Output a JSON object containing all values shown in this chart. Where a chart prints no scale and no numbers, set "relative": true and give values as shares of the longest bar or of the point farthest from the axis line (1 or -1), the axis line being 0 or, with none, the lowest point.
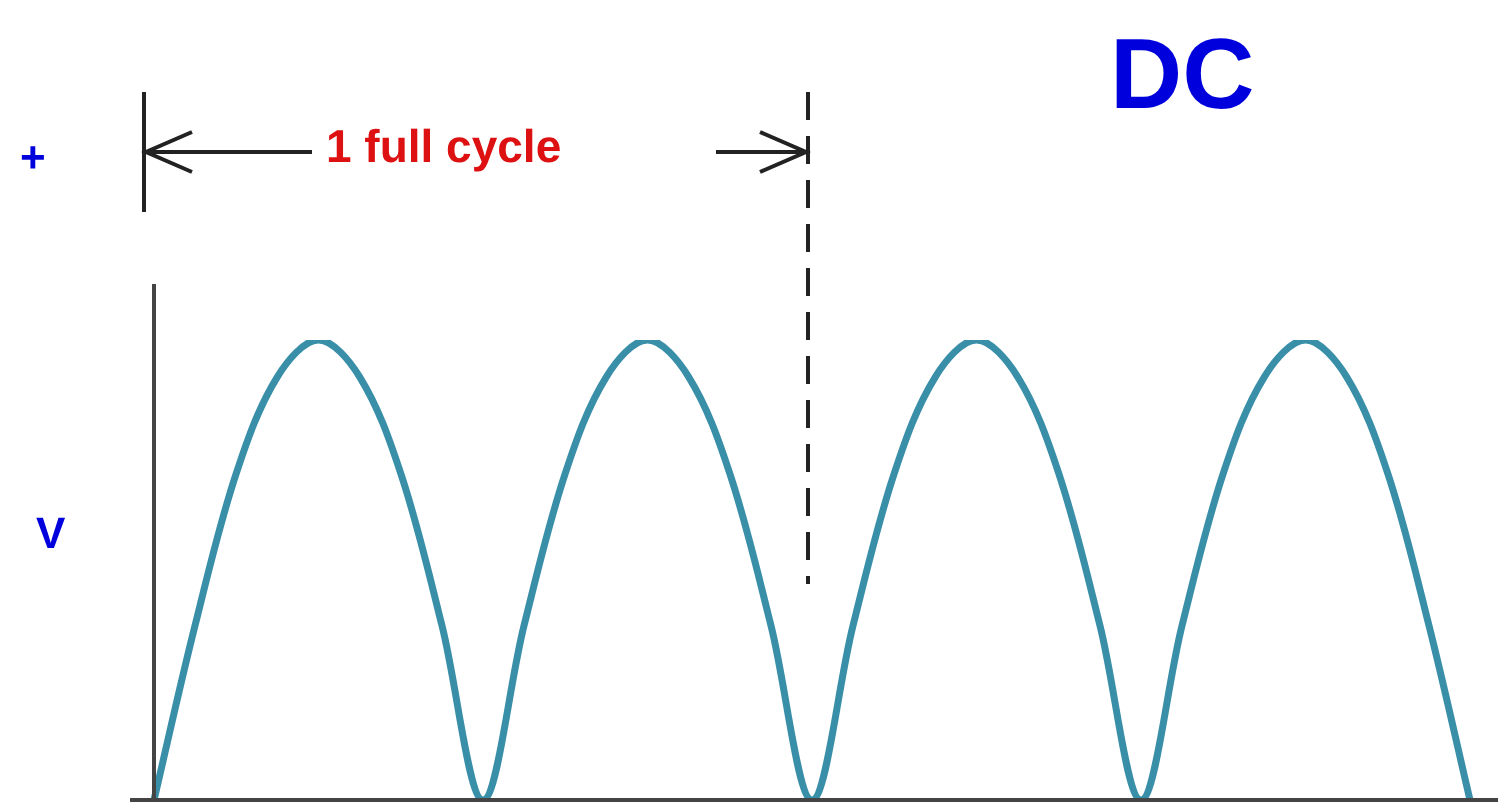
{
  "chart_data": {
    "type": "line",
    "title": "DC",
    "ylabel": "V",
    "relative": true,
    "color": "#3a8fa8",
    "categories": [
      null,
      null,
      null,
      null,
      null,
      null,
      null,
      null,
      null,
      null,
      null,
      null,
      null,
      null,
      null,
      null,
      null,
      null,
      null,
      null,
      null,
      null,
      null,
      null,
      null,
      null,
      null,
      null,
      null,
      null,
      null,
      null,
      null
    ],
    "values": [
      0,
      0.38,
      0.71,
      0.92,
      1,
      0.92,
      0.71,
      0.38,
      0,
      0.38,
      0.71,
      0.92,
      1,
      0.92,
      0.71,
      0.38,
      0,
      0.38,
      0.71,
      0.92,
      1,
      0.92,
      0.71,
      0.38,
      0,
      0.38,
      0.71,
      0.92,
      1,
      0.92,
      0.71,
      0.38,
      0
    ],
    "annotations": [
      "+",
      "1 full cycle"
    ],
    "legend": false,
    "tick_labels": false,
    "marker": "none",
    "line_style": "solid"
  }
}
